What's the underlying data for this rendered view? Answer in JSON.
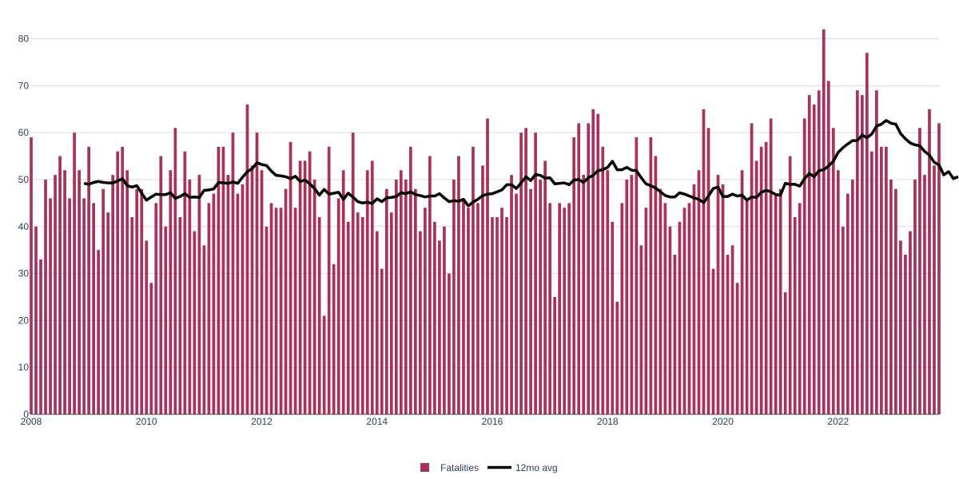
{
  "chart_data": {
    "type": "bar",
    "x_start": "2008-01",
    "x_frequency": "monthly",
    "xlim": [
      "2008-01",
      "2023-10"
    ],
    "ylim": [
      0,
      84
    ],
    "grid": true,
    "legend_placement": "bottom-center",
    "x_ticks": [
      "2008",
      "2010",
      "2012",
      "2014",
      "2016",
      "2018",
      "2020",
      "2022"
    ],
    "y_ticks": [
      "0",
      "10",
      "20",
      "30",
      "40",
      "50",
      "60",
      "70",
      "80"
    ],
    "colors": {
      "bar": "#a8325e",
      "line": "#000000",
      "grid": "#dcdcdc",
      "text": "#2a3f5f"
    },
    "series": [
      {
        "name": "Fatalities",
        "type": "bar",
        "values": [
          59,
          40,
          33,
          50,
          46,
          51,
          55,
          52,
          46,
          60,
          52,
          46,
          57,
          45,
          35,
          48,
          43,
          51,
          56,
          57,
          52,
          42,
          48,
          48,
          37,
          28,
          45,
          55,
          40,
          52,
          61,
          42,
          56,
          50,
          39,
          51,
          36,
          45,
          47,
          57,
          57,
          51,
          60,
          47,
          49,
          66,
          53,
          60,
          52,
          40,
          45,
          44,
          44,
          48,
          58,
          44,
          54,
          54,
          56,
          50,
          42,
          21,
          57,
          32,
          46,
          52,
          41,
          60,
          43,
          42,
          52,
          54,
          39,
          31,
          48,
          43,
          50,
          52,
          50,
          57,
          48,
          39,
          44,
          55,
          41,
          37,
          40,
          30,
          50,
          55,
          46,
          44,
          57,
          45,
          53,
          63,
          42,
          42,
          44,
          42,
          51,
          47,
          60,
          61,
          48,
          60,
          50,
          54,
          45,
          25,
          45,
          44,
          45,
          59,
          62,
          51,
          62,
          65,
          64,
          57,
          52,
          41,
          24,
          45,
          50,
          51,
          59,
          36,
          44,
          59,
          55,
          48,
          45,
          40,
          34,
          41,
          44,
          45,
          49,
          52,
          65,
          61,
          31,
          51,
          49,
          34,
          36,
          28,
          52,
          46,
          62,
          54,
          57,
          58,
          63,
          47,
          48,
          26,
          55,
          42,
          45,
          63,
          68,
          66,
          69,
          82,
          71,
          61,
          52,
          40,
          47,
          50,
          69,
          68,
          77,
          56,
          69,
          57,
          57,
          50,
          48,
          37,
          34,
          39,
          50,
          61,
          51,
          65,
          53,
          62
        ]
      },
      {
        "name": "12mo avg",
        "type": "line",
        "start_index": 11,
        "values": [
          49.2,
          49.0,
          49.4,
          49.6,
          49.4,
          49.3,
          49.3,
          49.7,
          50.2,
          48.7,
          48.4,
          48.7,
          47.1,
          45.6,
          46.3,
          46.9,
          46.8,
          46.8,
          47.2,
          46.0,
          46.4,
          47.0,
          46.2,
          46.3,
          46.2,
          47.7,
          47.8,
          48.0,
          49.4,
          49.3,
          49.2,
          49.5,
          49.2,
          50.5,
          51.7,
          52.3,
          53.6,
          53.2,
          53.0,
          51.8,
          50.9,
          50.8,
          50.6,
          50.2,
          50.7,
          49.6,
          49.9,
          49.1,
          48.1,
          46.7,
          47.9,
          46.9,
          47.1,
          47.3,
          45.8,
          47.1,
          46.3,
          45.3,
          45.0,
          45.2,
          44.9,
          45.9,
          45.3,
          46.1,
          46.2,
          46.4,
          47.2,
          47.0,
          47.4,
          46.8,
          46.6,
          46.3,
          46.5,
          46.5,
          47.0,
          46.1,
          45.3,
          45.5,
          45.4,
          45.8,
          44.4,
          45.2,
          45.8,
          46.6,
          46.9,
          47.0,
          47.4,
          47.8,
          48.9,
          48.9,
          48.1,
          49.3,
          50.6,
          49.8,
          51.1,
          50.9,
          50.3,
          50.4,
          49.1,
          49.2,
          49.3,
          48.9,
          49.9,
          50.0,
          49.4,
          50.4,
          50.9,
          51.9,
          52.1,
          52.6,
          53.9,
          52.1,
          52.1,
          52.6,
          52.0,
          51.9,
          50.4,
          49.1,
          48.7,
          48.2,
          47.4,
          46.6,
          46.3,
          46.3,
          47.2,
          46.9,
          46.5,
          46.1,
          45.8,
          45.1,
          46.5,
          48.1,
          48.4,
          46.4,
          46.4,
          46.9,
          46.5,
          46.7,
          45.6,
          46.3,
          46.2,
          47.3,
          47.7,
          47.4,
          46.8,
          46.7,
          49.2,
          49.0,
          49.0,
          48.6,
          50.2,
          51.3,
          50.6,
          51.9,
          52.1,
          52.9,
          53.9,
          55.8,
          56.8,
          57.6,
          58.3,
          58.3,
          59.5,
          58.9,
          59.7,
          61.4,
          61.8,
          62.6,
          62.0,
          61.8,
          59.8,
          58.7,
          57.8,
          57.4,
          57.2,
          56.0,
          55.2,
          53.7,
          53.1,
          51.0,
          51.7,
          50.2,
          50.6
        ]
      }
    ]
  }
}
